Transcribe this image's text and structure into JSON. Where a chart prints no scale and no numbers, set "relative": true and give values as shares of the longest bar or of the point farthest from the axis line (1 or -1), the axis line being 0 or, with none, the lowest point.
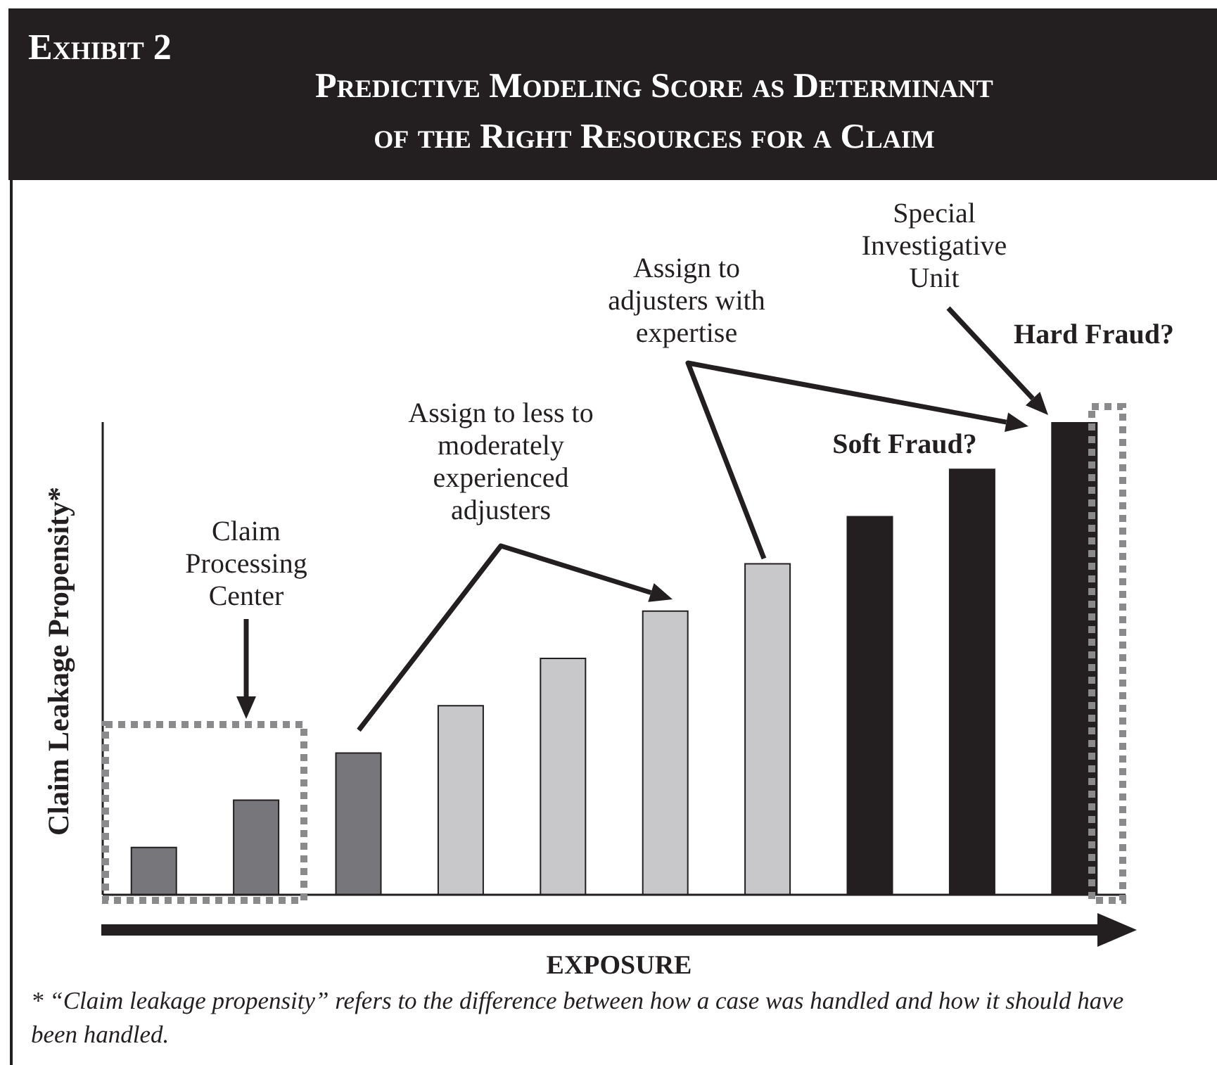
{
  "chart_data": {
    "type": "bar",
    "relative": true,
    "title": "Predictive Modeling Score as Determinant of the Right Resources for a Claim",
    "xlabel": "EXPOSURE",
    "ylabel": "Claim Leakage Propensity*",
    "categories": [
      null,
      null,
      null,
      null,
      null,
      null,
      null,
      null,
      null,
      null
    ],
    "values": [
      0.1,
      0.2,
      0.3,
      0.4,
      0.5,
      0.6,
      0.7,
      0.8,
      0.9,
      1.0
    ],
    "colors": [
      "#77777b",
      "#77777b",
      "#77777b",
      "#c8c8ca",
      "#c8c8ca",
      "#c8c8ca",
      "#c8c8ca",
      "#231f20",
      "#231f20",
      "#231f20"
    ],
    "annotations": [
      "Exhibit 2",
      "Claim Processing Center",
      "Assign to less to moderately experienced adjusters",
      "Assign to adjusters with expertise",
      "Special Investigative Unit",
      "Soft Fraud?",
      "Hard Fraud?",
      "* “Claim leakage propensity” refers to the difference between how a case was handled and how it should have been handled."
    ]
  }
}
